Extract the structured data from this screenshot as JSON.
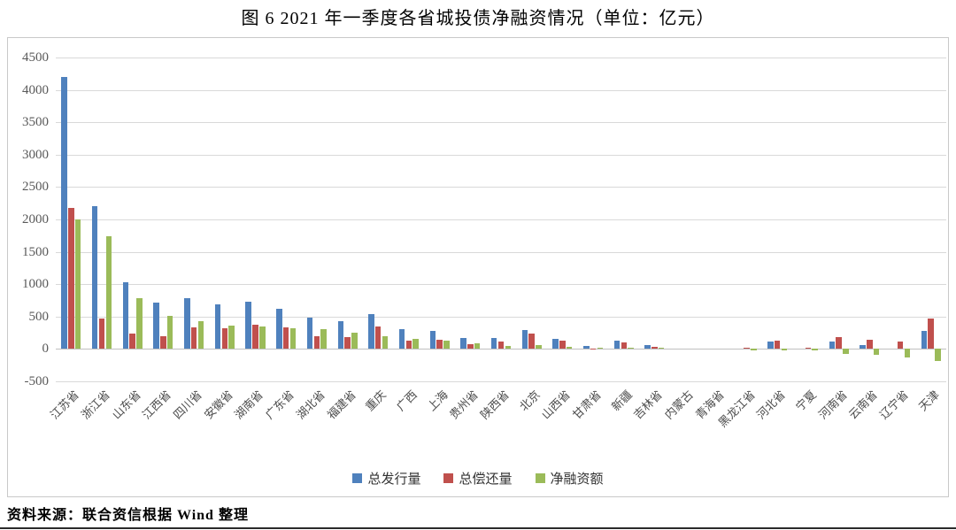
{
  "page": {
    "title": "图 6  2021 年一季度各省城投债净融资情况（单位：亿元）",
    "source_note": "资料来源：联合资信根据 Wind 整理"
  },
  "colors": {
    "issuance_blue": "#4F81BD",
    "repayment_red": "#C0504D",
    "net_green": "#9BBB59",
    "gridline": "#D9D9D9",
    "zero_axis": "#BFBFBF",
    "axis_text": "#595959",
    "chart_border": "#C9C9C9"
  },
  "chart_data": {
    "type": "bar",
    "title": "图 6  2021 年一季度各省城投债净融资情况（单位：亿元）",
    "unit": "亿元",
    "xlabel": "",
    "ylabel": "",
    "ylim": [
      -500,
      4500
    ],
    "ytick_step": 500,
    "grid": true,
    "legend_position": "bottom",
    "categories": [
      "江苏省",
      "浙江省",
      "山东省",
      "江西省",
      "四川省",
      "安徽省",
      "湖南省",
      "广东省",
      "湖北省",
      "福建省",
      "重庆",
      "广西",
      "上海",
      "贵州省",
      "陕西省",
      "北京",
      "山西省",
      "甘肃省",
      "新疆",
      "吉林省",
      "内蒙古",
      "青海省",
      "黑龙江省",
      "河北省",
      "宁夏",
      "河南省",
      "云南省",
      "辽宁省",
      "天津"
    ],
    "series": [
      {
        "name": "总发行量",
        "color": "#4F81BD",
        "values": [
          4200,
          2200,
          1030,
          710,
          780,
          685,
          735,
          625,
          480,
          430,
          545,
          300,
          275,
          175,
          170,
          295,
          160,
          40,
          130,
          60,
          0,
          0,
          0,
          115,
          0,
          120,
          60,
          0,
          285
        ]
      },
      {
        "name": "总偿还量",
        "color": "#C0504D",
        "values": [
          2180,
          470,
          240,
          200,
          330,
          315,
          380,
          330,
          190,
          185,
          350,
          135,
          140,
          80,
          110,
          235,
          125,
          10,
          100,
          35,
          0,
          0,
          25,
          135,
          25,
          185,
          145,
          120,
          465
        ]
      },
      {
        "name": "净融资额",
        "color": "#9BBB59",
        "values": [
          2000,
          1740,
          780,
          505,
          430,
          365,
          350,
          315,
          300,
          245,
          195,
          150,
          135,
          90,
          50,
          55,
          30,
          25,
          25,
          20,
          0,
          0,
          -25,
          -20,
          -25,
          -75,
          -90,
          -130,
          -185
        ]
      }
    ]
  }
}
